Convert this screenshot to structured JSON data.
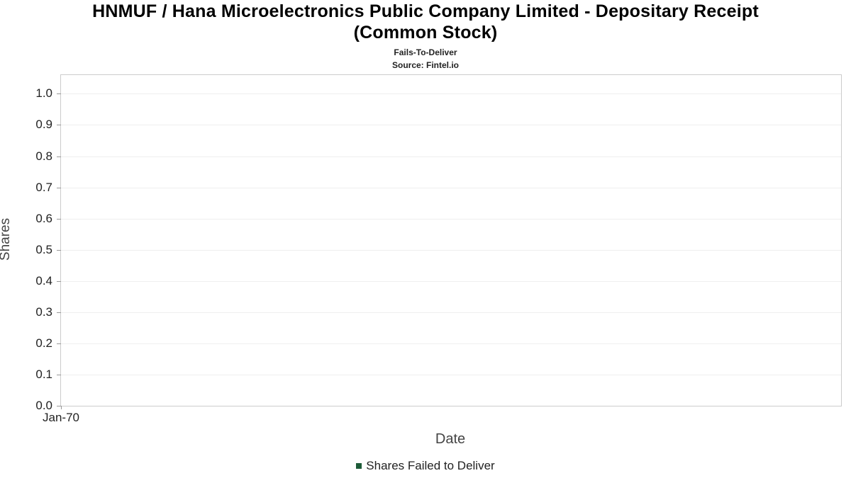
{
  "title": "HNMUF / Hana Microelectronics Public Company Limited - Depositary Receipt\n(Common Stock)",
  "subtitle": "Fails-To-Deliver",
  "source": "Source: Fintel.io",
  "chart_data": {
    "type": "line",
    "title": "HNMUF / Hana Microelectronics Public Company Limited - Depositary Receipt (Common Stock)",
    "xlabel": "Date",
    "ylabel": "Shares",
    "x_tick_labels": [
      "Jan-70"
    ],
    "y_ticks": [
      0.0,
      0.1,
      0.2,
      0.3,
      0.4,
      0.5,
      0.6,
      0.7,
      0.8,
      0.9,
      1.0
    ],
    "ylim": [
      0,
      1.06
    ],
    "grid": true,
    "legend_position": "bottom",
    "series": [
      {
        "name": "Shares Failed to Deliver",
        "color": "#1d5b38",
        "x": [],
        "values": []
      }
    ]
  }
}
